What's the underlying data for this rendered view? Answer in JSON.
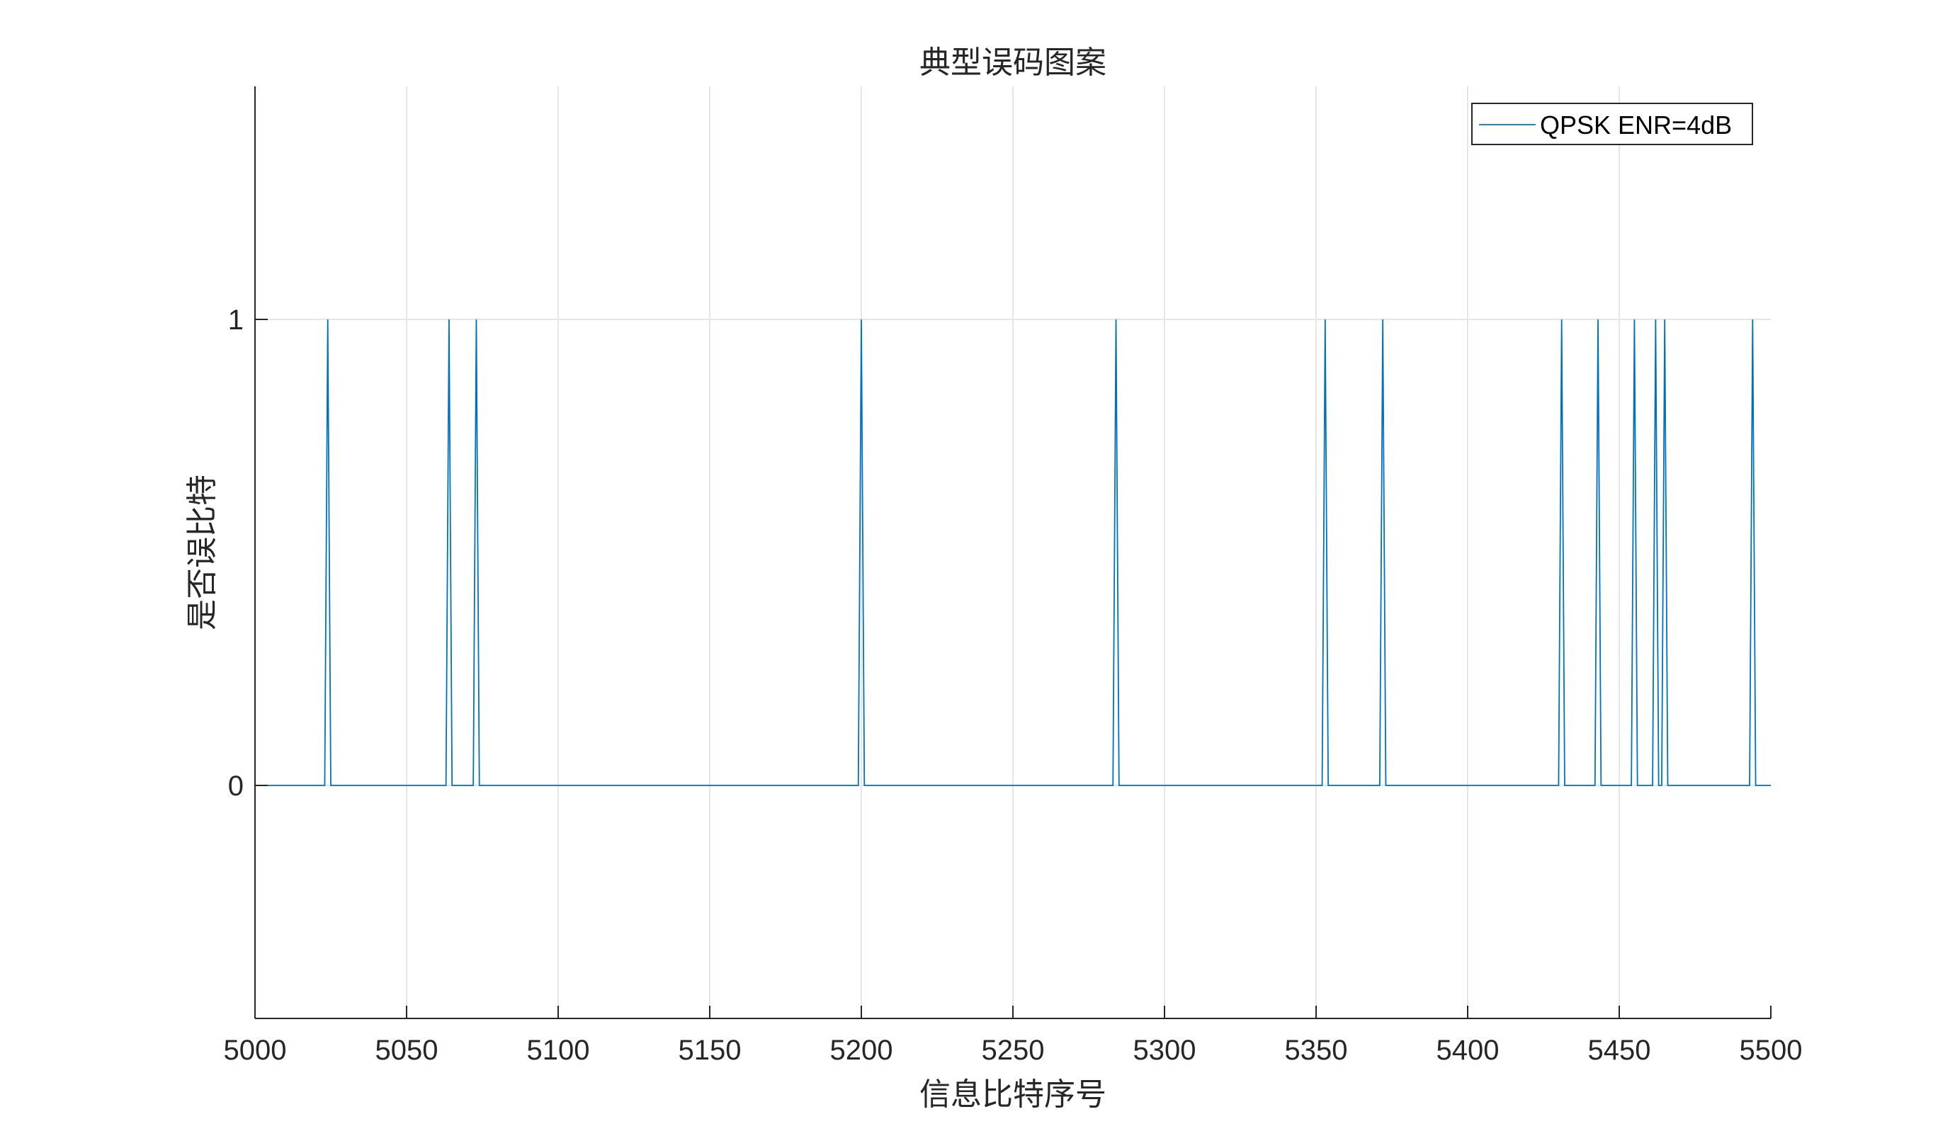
{
  "chart_data": {
    "type": "line",
    "title": "典型误码图案",
    "xlabel": "信息比特序号",
    "ylabel": "是否误比特",
    "xlim": [
      5000,
      5500
    ],
    "ylim": [
      -0.5,
      1.5
    ],
    "xticks": [
      5000,
      5050,
      5100,
      5150,
      5200,
      5250,
      5300,
      5350,
      5400,
      5450,
      5500
    ],
    "yticks": [
      0,
      1
    ],
    "grid": true,
    "legend_position": "top-right",
    "series": [
      {
        "name": "QPSK ENR=4dB",
        "color": "#0072BD",
        "error_bits": [
          5024,
          5064,
          5073,
          5200,
          5284,
          5353,
          5372,
          5431,
          5443,
          5455,
          5462,
          5465,
          5494
        ]
      }
    ]
  }
}
